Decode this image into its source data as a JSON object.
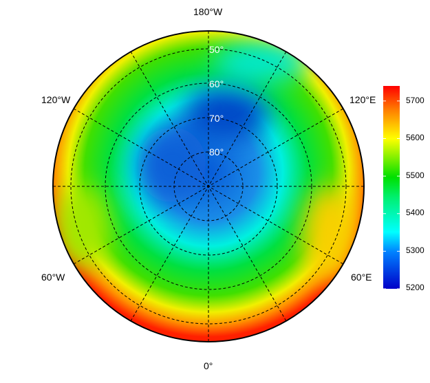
{
  "map": {
    "projection": "north polar stereographic",
    "longitude_labels": [
      "180°W",
      "120°W",
      "120°E",
      "60°W",
      "60°E",
      "0°"
    ],
    "latitude_labels": [
      "50°",
      "60°",
      "70°",
      "80°"
    ]
  },
  "colorbar": {
    "ticks": [
      "5200",
      "5300",
      "5400",
      "5500",
      "5600",
      "5700"
    ],
    "range": [
      5200,
      5740
    ],
    "colors": [
      "#0000c8",
      "#0080ff",
      "#00ffff",
      "#00e000",
      "#ffff00",
      "#ff8000",
      "#ff0000"
    ]
  }
}
